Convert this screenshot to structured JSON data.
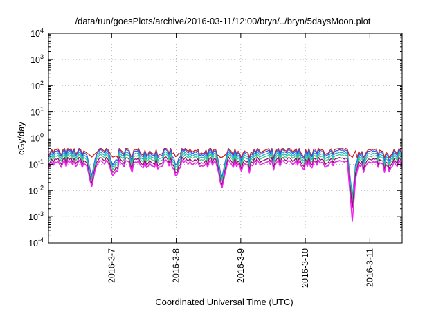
{
  "chart_data": {
    "type": "line",
    "title": "/data/run/goesPlots/archive/2016-03-11/12:00/bryn/../bryn/5daysMoon.plot",
    "xlabel": "Coordinated Universal Time (UTC)",
    "ylabel": "cGy/day",
    "y_scale": "log",
    "ylim": [
      0.0001,
      10000
    ],
    "y_ticks": [
      {
        "base": "10",
        "exp": "-4",
        "value": 0.0001
      },
      {
        "base": "10",
        "exp": "-3",
        "value": 0.001
      },
      {
        "base": "10",
        "exp": "-2",
        "value": 0.01
      },
      {
        "base": "10",
        "exp": "-1",
        "value": 0.1
      },
      {
        "base": "10",
        "exp": "0",
        "value": 1
      },
      {
        "base": "10",
        "exp": "1",
        "value": 10
      },
      {
        "base": "10",
        "exp": "2",
        "value": 100
      },
      {
        "base": "10",
        "exp": "3",
        "value": 1000
      },
      {
        "base": "10",
        "exp": "4",
        "value": 10000
      }
    ],
    "xlim": [
      "2016-03-06T00:30",
      "2016-03-11T12:00"
    ],
    "x_ticks": [
      "2016-3-7",
      "2016-3-8",
      "2016-3-9",
      "2016-3-10",
      "2016-3-11"
    ],
    "grid": true,
    "series": [
      {
        "color": "#cc2222",
        "typical": 0.3,
        "min": 0.18,
        "max": 0.4
      },
      {
        "color": "#3355ee",
        "typical": 0.26,
        "min": 0.005,
        "max": 0.36
      },
      {
        "color": "#22aacc",
        "typical": 0.21,
        "min": 0.004,
        "max": 0.3
      },
      {
        "color": "#33cc88",
        "typical": 0.17,
        "min": 0.003,
        "max": 0.25
      },
      {
        "color": "#881166",
        "typical": 0.13,
        "min": 0.002,
        "max": 0.19
      },
      {
        "color": "#ee22ee",
        "typical": 0.1,
        "min": 0.0006,
        "max": 0.15
      }
    ],
    "dips": [
      {
        "x": "2016-03-06T16:30",
        "value": 0.012
      },
      {
        "x": "2016-03-07T00:30",
        "value": 0.035
      },
      {
        "x": "2016-03-08T00:00",
        "value": 0.03
      },
      {
        "x": "2016-03-08T17:00",
        "value": 0.012
      },
      {
        "x": "2016-03-10T17:30",
        "value": 0.0006
      }
    ]
  }
}
